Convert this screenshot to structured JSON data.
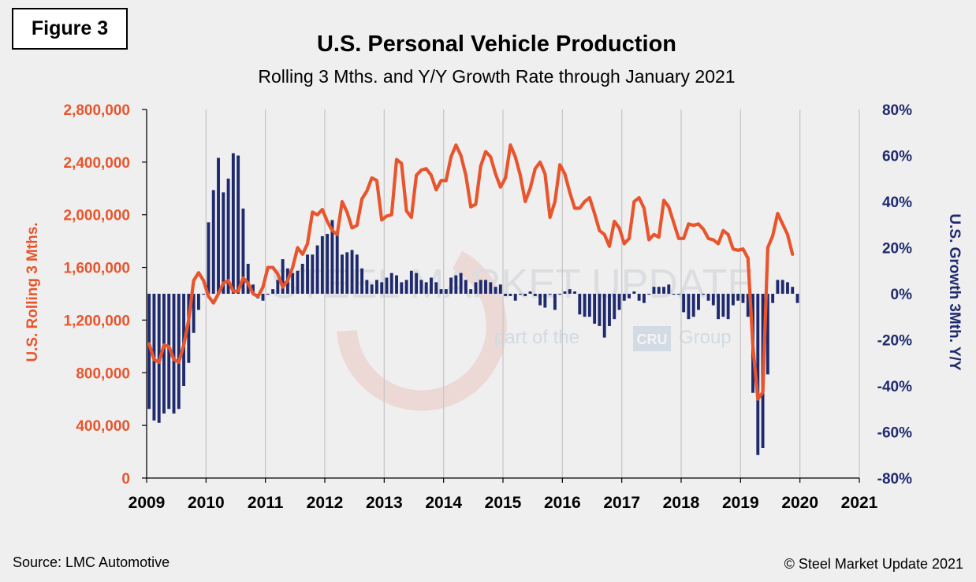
{
  "figure_label": "Figure 3",
  "source": "Source: LMC Automotive",
  "copyright": "© Steel Market Update 2021",
  "watermark": {
    "brand": "STEEL MARKET UPDATE",
    "tagline_pre": "part of the",
    "tagline_logo": "CRU",
    "tagline_post": "Group"
  },
  "colors": {
    "line": "#e8552d",
    "bars": "#1f2a6e",
    "grid": "#c8c8c8",
    "background": "#efefef"
  },
  "chart_data": {
    "type": "line+bar",
    "title": "U.S. Personal Vehicle Production",
    "subtitle": "Rolling 3 Mths. and Y/Y Growth Rate through January 2021",
    "ylabel_left": "U.S.  Rolling 3 Mths.",
    "ylabel_right": "U.S. Growth 3Mth. Y/Y",
    "ylim_left": [
      0,
      2800000
    ],
    "ylim_right": [
      -0.8,
      0.8
    ],
    "yticks_left": [
      "0",
      "400,000",
      "800,000",
      "1,200,000",
      "1,600,000",
      "2,000,000",
      "2,400,000",
      "2,800,000"
    ],
    "yticks_right": [
      "-80%",
      "-60%",
      "-40%",
      "-20%",
      "0%",
      "20%",
      "40%",
      "60%",
      "80%"
    ],
    "xticks": [
      "2009",
      "2010",
      "2011",
      "2012",
      "2013",
      "2014",
      "2015",
      "2016",
      "2017",
      "2018",
      "2019",
      "2020",
      "2021"
    ],
    "grid": "vertical",
    "x_start": "2009-01",
    "series": [
      {
        "name": "U.S.  Rolling 3 Mths.",
        "axis": "left",
        "kind": "line",
        "values": [
          1020000,
          900000,
          880000,
          1010000,
          1000000,
          900000,
          880000,
          1010000,
          1200000,
          1500000,
          1560000,
          1500000,
          1380000,
          1330000,
          1400000,
          1480000,
          1500000,
          1420000,
          1420000,
          1520000,
          1480000,
          1400000,
          1380000,
          1450000,
          1600000,
          1600000,
          1550000,
          1450000,
          1500000,
          1600000,
          1750000,
          1700000,
          1780000,
          2020000,
          2000000,
          2040000,
          1950000,
          1880000,
          1850000,
          2100000,
          2020000,
          1900000,
          1920000,
          2120000,
          2180000,
          2280000,
          2260000,
          1960000,
          1990000,
          2000000,
          2420000,
          2390000,
          2030000,
          1980000,
          2300000,
          2340000,
          2350000,
          2300000,
          2190000,
          2260000,
          2260000,
          2440000,
          2530000,
          2450000,
          2300000,
          2060000,
          2080000,
          2370000,
          2480000,
          2440000,
          2310000,
          2210000,
          2280000,
          2530000,
          2440000,
          2300000,
          2100000,
          2200000,
          2350000,
          2400000,
          2310000,
          1980000,
          2100000,
          2380000,
          2310000,
          2170000,
          2050000,
          2050000,
          2100000,
          2130000,
          2010000,
          1880000,
          1850000,
          1760000,
          1950000,
          1900000,
          1780000,
          1820000,
          2100000,
          2130000,
          2050000,
          1810000,
          1850000,
          1830000,
          2110000,
          2060000,
          1940000,
          1820000,
          1820000,
          1930000,
          1920000,
          1930000,
          1890000,
          1820000,
          1810000,
          1780000,
          1880000,
          1850000,
          1740000,
          1730000,
          1740000,
          1670000,
          1000000,
          600000,
          650000,
          1750000,
          1840000,
          2010000,
          1930000,
          1850000,
          1700000
        ]
      },
      {
        "name": "U.S. Growth 3Mth. Y/Y",
        "axis": "right",
        "kind": "bar",
        "values": [
          -0.5,
          -0.55,
          -0.56,
          -0.52,
          -0.5,
          -0.52,
          -0.5,
          -0.4,
          -0.3,
          -0.17,
          -0.07,
          0.0,
          0.31,
          0.45,
          0.59,
          0.44,
          0.5,
          0.61,
          0.6,
          0.37,
          0.13,
          0.04,
          -0.02,
          -0.03,
          0.0,
          0.02,
          0.06,
          0.15,
          0.11,
          0.09,
          0.1,
          0.13,
          0.17,
          0.17,
          0.21,
          0.25,
          0.26,
          0.32,
          0.26,
          0.17,
          0.18,
          0.19,
          0.17,
          0.11,
          0.06,
          0.04,
          0.06,
          0.05,
          0.07,
          0.09,
          0.08,
          0.05,
          0.06,
          0.1,
          0.09,
          0.06,
          0.05,
          0.07,
          0.05,
          0.02,
          0.02,
          0.07,
          0.08,
          0.09,
          0.06,
          0.02,
          0.05,
          0.06,
          0.06,
          0.05,
          0.03,
          0.04,
          -0.01,
          -0.01,
          -0.03,
          0.0,
          -0.01,
          0.01,
          -0.01,
          -0.05,
          -0.06,
          0.0,
          -0.07,
          0.0,
          0.01,
          0.02,
          0.01,
          -0.09,
          -0.1,
          -0.1,
          -0.13,
          -0.14,
          -0.19,
          -0.14,
          -0.11,
          -0.07,
          -0.03,
          -0.02,
          0.01,
          -0.03,
          -0.04,
          0.0,
          0.03,
          0.03,
          0.03,
          0.04,
          0.0,
          0.0,
          -0.08,
          -0.11,
          -0.1,
          -0.07,
          0.0,
          -0.03,
          -0.05,
          -0.11,
          -0.1,
          -0.11,
          -0.05,
          -0.03,
          -0.04,
          -0.1,
          -0.43,
          -0.7,
          -0.67,
          -0.35,
          -0.04,
          0.06,
          0.06,
          0.05,
          0.03,
          -0.04
        ]
      }
    ]
  }
}
